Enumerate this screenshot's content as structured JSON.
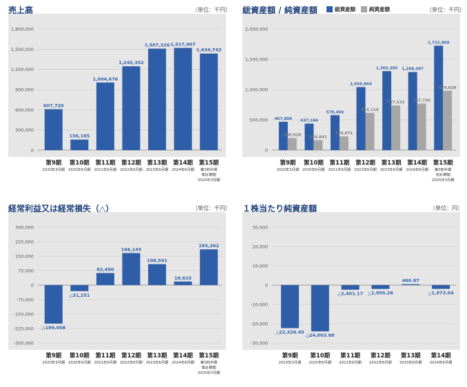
{
  "chart_data": [
    {
      "type": "bar",
      "title": "売上高",
      "unit_label": "（単位：千円）",
      "categories": [
        "第9期",
        "第10期",
        "第11期",
        "第12期",
        "第13期",
        "第14期",
        "第15期"
      ],
      "category_sublabels": [
        [
          "2020年3月期"
        ],
        [
          "2020年6月期"
        ],
        [
          "2021年6月期"
        ],
        [
          "2022年6月期"
        ],
        [
          "2023年6月期"
        ],
        [
          "2024年6月期"
        ],
        [
          "第3四半期",
          "累計期間",
          "2025年3月期"
        ]
      ],
      "series": [
        {
          "values": [
            607720,
            156165,
            1004676,
            1245352,
            1507326,
            1517907,
            1434742
          ],
          "labels": [
            "607,720",
            "156,165",
            "1,004,676",
            "1,245,352",
            "1,507,326",
            "1,517,907",
            "1,434,742"
          ]
        }
      ],
      "yticks": [
        0,
        300000,
        600000,
        900000,
        1200000,
        1500000,
        1800000
      ],
      "ytick_labels": [
        "0",
        "300,000",
        "600,000",
        "900,000",
        "1,200,000",
        "1,500,000",
        "1,800,000"
      ],
      "ylim": [
        0,
        1800000
      ],
      "grid": true
    },
    {
      "type": "bar",
      "title": "総資産額 / 純資産額",
      "unit_label": "（単位：千円）",
      "categories": [
        "第9期",
        "第10期",
        "第11期",
        "第12期",
        "第13期",
        "第14期",
        "第15期"
      ],
      "category_sublabels": [
        [
          "2020年3月期"
        ],
        [
          "2020年6月期"
        ],
        [
          "2021年6月期"
        ],
        [
          "2022年6月期"
        ],
        [
          "2023年6月期"
        ],
        [
          "2024年6月期"
        ],
        [
          "第3四半期",
          "会計期間",
          "2025年3月期"
        ]
      ],
      "series": [
        {
          "name": "総資産額",
          "values": [
            467809,
            437166,
            576466,
            1039864,
            1303385,
            1288497,
            1722869
          ],
          "labels": [
            "467,809",
            "437,166",
            "576,466",
            "1,039,864",
            "1,303,385",
            "1,288,497",
            "1,722,869"
          ]
        },
        {
          "name": "純資産額",
          "values": [
            200918,
            164841,
            226071,
            615116,
            737123,
            767736,
            979629
          ],
          "labels": [
            "200,918",
            "164,841",
            "226,071",
            "615,116",
            "737,123",
            "767,736",
            "979,629"
          ]
        }
      ],
      "yticks": [
        0,
        500000,
        1000000,
        1500000,
        2000000
      ],
      "ytick_labels": [
        "0",
        "500,000",
        "1,000,000",
        "1,500,000",
        "2,000,000"
      ],
      "ylim": [
        0,
        2000000
      ],
      "legend_position": "top",
      "grid": true
    },
    {
      "type": "bar",
      "title": "経常利益又は経常損失（△）",
      "unit_label": "（単位：千円）",
      "categories": [
        "第9期",
        "第10期",
        "第11期",
        "第12期",
        "第13期",
        "第14期",
        "第15期"
      ],
      "category_sublabels": [
        [
          "2020年3月期"
        ],
        [
          "2020年6月期"
        ],
        [
          "2021年6月期"
        ],
        [
          "2022年6月期"
        ],
        [
          "2023年6月期"
        ],
        [
          "2024年6月期"
        ],
        [
          "第3四半期",
          "累計期間",
          "2025年3月期"
        ]
      ],
      "series": [
        {
          "values": [
            -199958,
            -31251,
            62490,
            166145,
            108591,
            18615,
            185262
          ],
          "labels": [
            "△199,958",
            "△31,251",
            "62,490",
            "166,145",
            "108,591",
            "18,615",
            "185,262"
          ]
        }
      ],
      "yticks": [
        -300000,
        -225000,
        -150000,
        -75000,
        0,
        75000,
        150000,
        225000,
        300000
      ],
      "ytick_labels": [
        "-300,000",
        "-225,000",
        "-150,000",
        "-75,000",
        "0",
        "75,000",
        "150,000",
        "225,000",
        "300,000"
      ],
      "ylim": [
        -300000,
        300000
      ],
      "grid": true
    },
    {
      "type": "bar",
      "title": "１株当たり純資産額",
      "unit_label": "（単位：円）",
      "categories": [
        "第9期",
        "第10期",
        "第11期",
        "第12期",
        "第13期",
        "第14期"
      ],
      "category_sublabels": [
        [
          "2020年3月期"
        ],
        [
          "2020年6月期"
        ],
        [
          "2021年6月期"
        ],
        [
          "2022年6月期"
        ],
        [
          "2023年6月期"
        ],
        [
          "2024年6月期"
        ]
      ],
      "series": [
        {
          "values": [
            -22326.45,
            -24003.88,
            -2401.17,
            -1995.26,
            460.97,
            -1973.04
          ],
          "labels": [
            "△22,326.45",
            "△24,003.88",
            "△2,401.17",
            "△1,995.26",
            "460.97",
            "△1,973.04"
          ]
        }
      ],
      "yticks": [
        -30000,
        -20000,
        -10000,
        0,
        10000,
        20000,
        30000
      ],
      "ytick_labels": [
        "-30,000",
        "-20,000",
        "-10,000",
        "0",
        "10,000",
        "20,000",
        "30,000"
      ],
      "ylim": [
        -30000,
        30000
      ],
      "grid": true
    }
  ],
  "colors": {
    "primary": "#2f5ea8",
    "secondary": "#a6a6a6",
    "plot_bg": "#e6e6e6",
    "title": "#1f3f7a"
  }
}
